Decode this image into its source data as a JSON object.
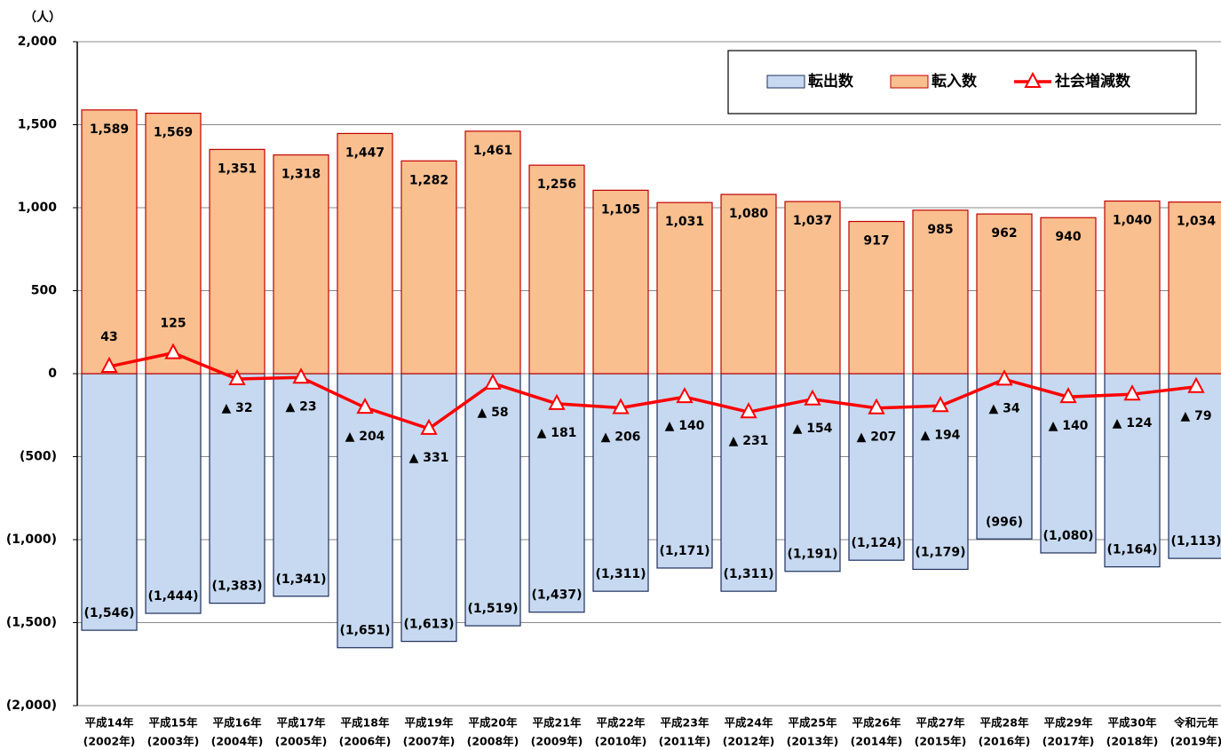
{
  "chart_data": {
    "type": "bar_line",
    "y_unit_label": "（人）",
    "categories": [
      [
        "平成14年",
        "(2002年)"
      ],
      [
        "平成15年",
        "(2003年)"
      ],
      [
        "平成16年",
        "(2004年)"
      ],
      [
        "平成17年",
        "(2005年)"
      ],
      [
        "平成18年",
        "(2006年)"
      ],
      [
        "平成19年",
        "(2007年)"
      ],
      [
        "平成20年",
        "(2008年)"
      ],
      [
        "平成21年",
        "(2009年)"
      ],
      [
        "平成22年",
        "(2010年)"
      ],
      [
        "平成23年",
        "(2011年)"
      ],
      [
        "平成24年",
        "(2012年)"
      ],
      [
        "平成25年",
        "(2013年)"
      ],
      [
        "平成26年",
        "(2014年)"
      ],
      [
        "平成27年",
        "(2015年)"
      ],
      [
        "平成28年",
        "(2016年)"
      ],
      [
        "平成29年",
        "(2017年)"
      ],
      [
        "平成30年",
        "(2018年)"
      ],
      [
        "令和元年",
        "(2019年)"
      ]
    ],
    "series": [
      {
        "name": "転出数",
        "kind": "bar",
        "color": "#c6d9f1",
        "edge": "#1f2f5a",
        "values": [
          -1546,
          -1444,
          -1383,
          -1341,
          -1651,
          -1613,
          -1519,
          -1437,
          -1311,
          -1171,
          -1311,
          -1191,
          -1124,
          -1179,
          -996,
          -1080,
          -1164,
          -1113
        ],
        "value_labels": [
          "(1,546)",
          "(1,444)",
          "(1,383)",
          "(1,341)",
          "(1,651)",
          "(1,613)",
          "(1,519)",
          "(1,437)",
          "(1,311)",
          "(1,171)",
          "(1,311)",
          "(1,191)",
          "(1,124)",
          "(1,179)",
          "(996)",
          "(1,080)",
          "(1,164)",
          "(1,113)"
        ]
      },
      {
        "name": "転入数",
        "kind": "bar",
        "color": "#f9bf8f",
        "edge": "#c00000",
        "values": [
          1589,
          1569,
          1351,
          1318,
          1447,
          1282,
          1461,
          1256,
          1105,
          1031,
          1080,
          1037,
          917,
          985,
          962,
          940,
          1040,
          1034
        ],
        "value_labels": [
          "1,589",
          "1,569",
          "1,351",
          "1,318",
          "1,447",
          "1,282",
          "1,461",
          "1,256",
          "1,105",
          "1,031",
          "1,080",
          "1,037",
          "917",
          "985",
          "962",
          "940",
          "1,040",
          "1,034"
        ]
      },
      {
        "name": "社会増減数",
        "kind": "line",
        "color": "#ff0000",
        "values": [
          43,
          125,
          -32,
          -23,
          -204,
          -331,
          -58,
          -181,
          -206,
          -140,
          -231,
          -154,
          -207,
          -194,
          -34,
          -140,
          -124,
          -79
        ],
        "value_labels": [
          "43",
          "125",
          "▲ 32",
          "▲ 23",
          "▲ 204",
          "▲ 331",
          "▲ 58",
          "▲ 181",
          "▲ 206",
          "▲ 140",
          "▲ 231",
          "▲ 154",
          "▲ 207",
          "▲ 194",
          "▲ 34",
          "▲ 140",
          "▲ 124",
          "▲ 79"
        ]
      }
    ],
    "ylim": [
      -2000,
      2000
    ],
    "yticks": [
      {
        "value": -2000,
        "label": "(2,000)"
      },
      {
        "value": -1500,
        "label": "(1,500)"
      },
      {
        "value": -1000,
        "label": "(1,000)"
      },
      {
        "value": -500,
        "label": "(500)"
      },
      0,
      500,
      {
        "value": 1000,
        "label": "1,000"
      },
      {
        "value": 1500,
        "label": "1,500"
      },
      {
        "value": 2000,
        "label": "2,000"
      }
    ],
    "grid": true,
    "legend": "upper right"
  }
}
